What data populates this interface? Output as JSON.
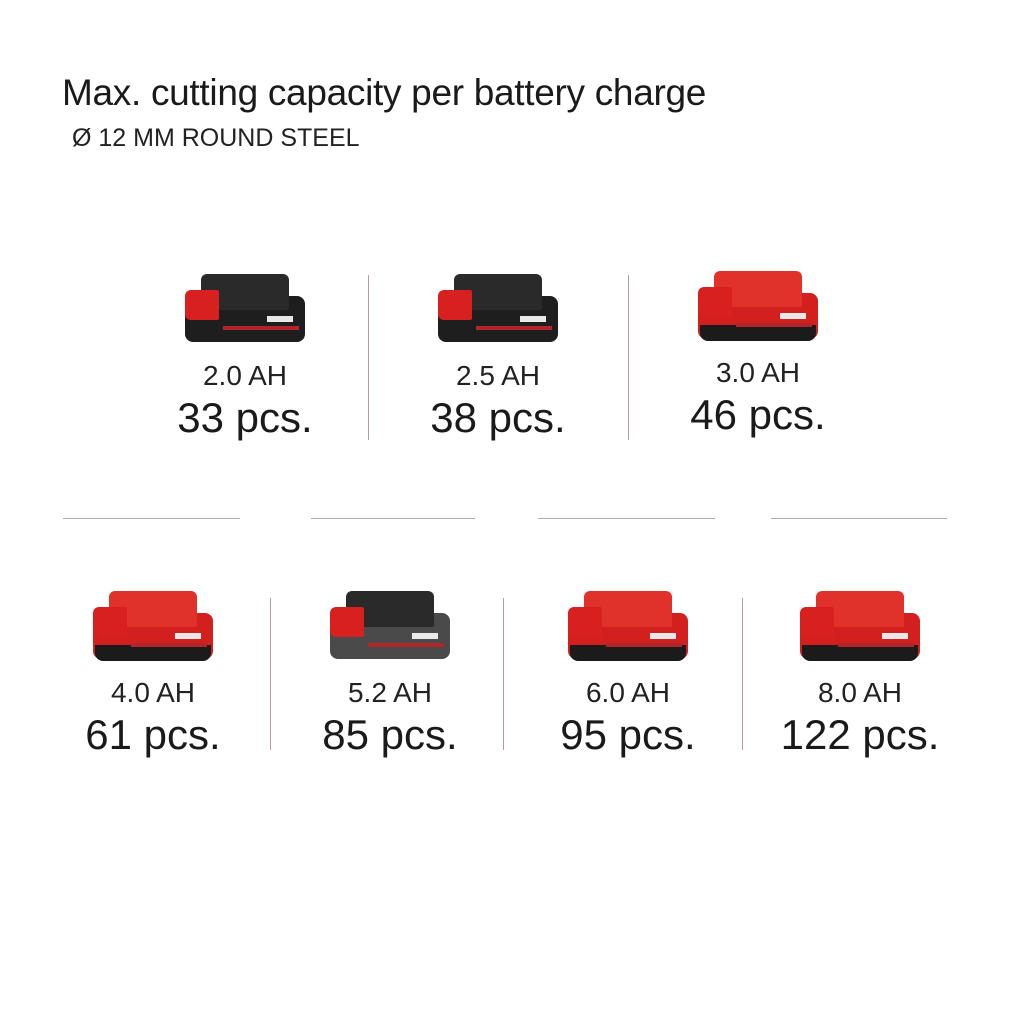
{
  "title": "Max. cutting capacity per battery charge",
  "subtitle": "Ø 12 MM ROUND STEEL",
  "accent_color": "#d8201f",
  "batteries": [
    {
      "capacity": "2.0 AH",
      "count": "33 pcs.",
      "style": "black"
    },
    {
      "capacity": "2.5 AH",
      "count": "38 pcs.",
      "style": "black"
    },
    {
      "capacity": "3.0 AH",
      "count": "46 pcs.",
      "style": "red"
    },
    {
      "capacity": "4.0 AH",
      "count": "61 pcs.",
      "style": "red"
    },
    {
      "capacity": "5.2 AH",
      "count": "85 pcs.",
      "style": "gray"
    },
    {
      "capacity": "6.0 AH",
      "count": "95 pcs.",
      "style": "red"
    },
    {
      "capacity": "8.0 AH",
      "count": "122 pcs.",
      "style": "red"
    }
  ]
}
